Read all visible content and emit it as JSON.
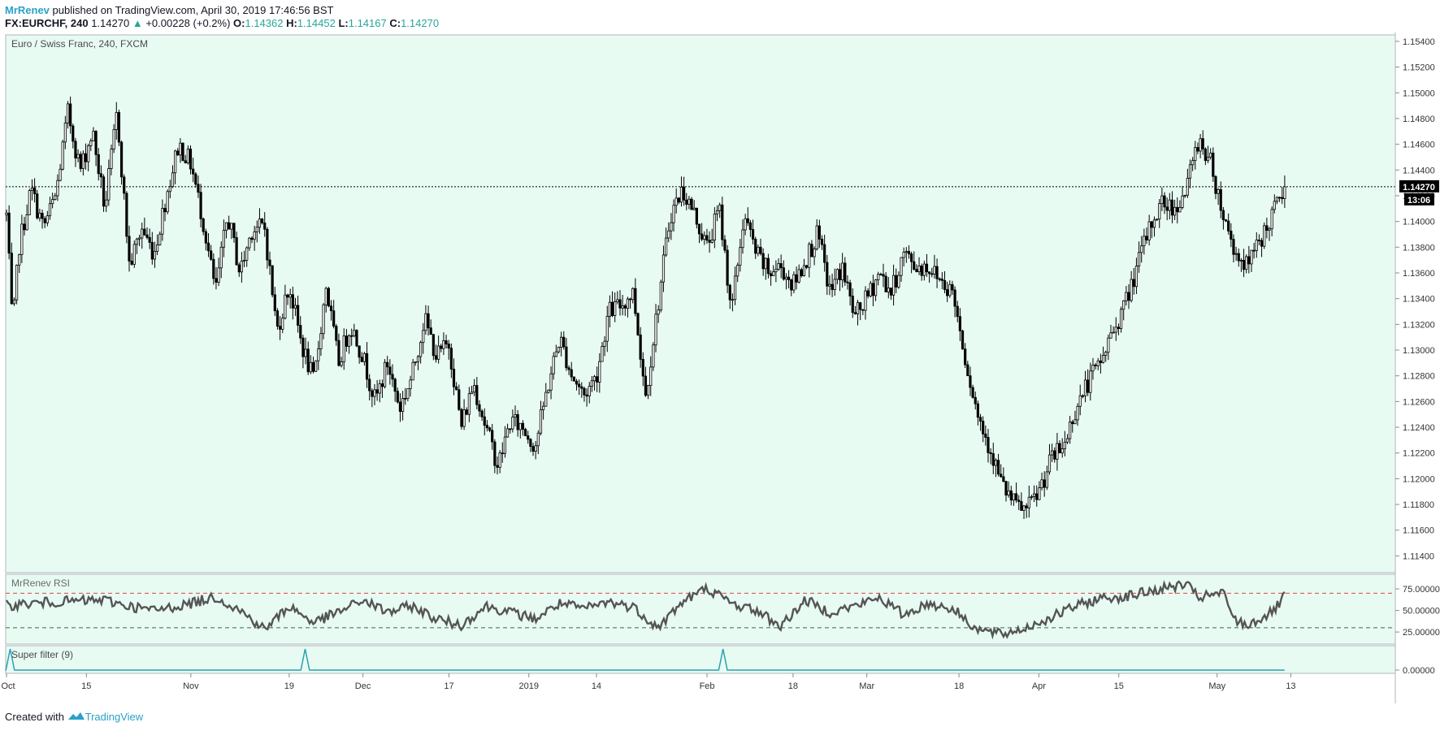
{
  "header": {
    "author": "MrRenev",
    "published_text": " published on TradingView.com, April 30, 2019 17:46:56 BST",
    "symbol": "FX:EURCHF, 240",
    "last": "1.14270",
    "change_arrow": "▲",
    "change": "+0.00228 (+0.2%)",
    "o_label": "O:",
    "o_value": "1.14362",
    "h_label": "H:",
    "h_value": "1.14452",
    "l_label": "L:",
    "l_value": "1.14167",
    "c_label": "C:",
    "c_value": "1.14270"
  },
  "main_pane": {
    "title": "Euro / Swiss Franc, 240, FXCM",
    "price_tag": "1.14270",
    "countdown_tag": "13:06"
  },
  "rsi_pane": {
    "title": "MrRenev RSI"
  },
  "filter_pane": {
    "title": "Super filter (9)"
  },
  "footer": {
    "created_with": "Created with",
    "brand": "TradingView"
  },
  "colors": {
    "pane_bg": "#e8fbf3",
    "candle": "#000000",
    "rsi_line": "#555555",
    "upper_band": "#e04444",
    "lower_band": "#3b6b3b",
    "filter_line": "#2aa1ae",
    "brand": "#2aa1c8",
    "up": "#26a69a"
  },
  "chart_data": [
    {
      "type": "candlestick",
      "title": "Euro / Swiss Franc, 240, FXCM",
      "y_ticks": [
        1.154,
        1.152,
        1.15,
        1.148,
        1.146,
        1.144,
        1.142,
        1.14,
        1.138,
        1.136,
        1.134,
        1.132,
        1.13,
        1.128,
        1.126,
        1.124,
        1.122,
        1.12,
        1.118,
        1.116,
        1.114
      ],
      "y_tick_labels": [
        "1.15400",
        "1.15200",
        "1.15000",
        "1.14800",
        "1.14600",
        "1.14400",
        "1.14200",
        "1.14000",
        "1.13800",
        "1.13600",
        "1.13400",
        "1.13200",
        "1.13000",
        "1.12800",
        "1.12600",
        "1.12400",
        "1.12200",
        "1.12000",
        "1.11800",
        "1.11600",
        "1.11400"
      ],
      "ylim": [
        1.1127,
        1.1545
      ],
      "last_price": 1.1427,
      "close_path": [
        [
          0,
          1.1405
        ],
        [
          0.5,
          1.1315
        ],
        [
          1,
          1.138
        ],
        [
          2,
          1.1425
        ],
        [
          3,
          1.1395
        ],
        [
          4,
          1.142
        ],
        [
          5,
          1.1485
        ],
        [
          6,
          1.144
        ],
        [
          7,
          1.147
        ],
        [
          8,
          1.141
        ],
        [
          9,
          1.1485
        ],
        [
          10,
          1.1365
        ],
        [
          11,
          1.1395
        ],
        [
          12,
          1.1375
        ],
        [
          13,
          1.142
        ],
        [
          14,
          1.146
        ],
        [
          15,
          1.1445
        ],
        [
          16,
          1.14
        ],
        [
          17,
          1.1345
        ],
        [
          18,
          1.1405
        ],
        [
          19,
          1.136
        ],
        [
          20,
          1.1395
        ],
        [
          21,
          1.1395
        ],
        [
          22,
          1.1315
        ],
        [
          23,
          1.135
        ],
        [
          24,
          1.1305
        ],
        [
          25,
          1.1275
        ],
        [
          26,
          1.135
        ],
        [
          27,
          1.129
        ],
        [
          28,
          1.132
        ],
        [
          29,
          1.1295
        ],
        [
          30,
          1.126
        ],
        [
          31,
          1.129
        ],
        [
          32,
          1.1255
        ],
        [
          33,
          1.128
        ],
        [
          34,
          1.1325
        ],
        [
          35,
          1.1295
        ],
        [
          36,
          1.1305
        ],
        [
          37,
          1.124
        ],
        [
          38,
          1.1275
        ],
        [
          39,
          1.124
        ],
        [
          40,
          1.121
        ],
        [
          41,
          1.1245
        ],
        [
          42,
          1.124
        ],
        [
          43,
          1.1225
        ],
        [
          44,
          1.127
        ],
        [
          45,
          1.131
        ],
        [
          46,
          1.128
        ],
        [
          47,
          1.1265
        ],
        [
          48,
          1.128
        ],
        [
          49,
          1.133
        ],
        [
          50,
          1.1335
        ],
        [
          51,
          1.1345
        ],
        [
          52,
          1.1265
        ],
        [
          53,
          1.1335
        ],
        [
          54,
          1.1405
        ],
        [
          55,
          1.1425
        ],
        [
          56,
          1.1405
        ],
        [
          57,
          1.138
        ],
        [
          58,
          1.141
        ],
        [
          59,
          1.133
        ],
        [
          60,
          1.1405
        ],
        [
          61,
          1.1375
        ],
        [
          62,
          1.136
        ],
        [
          63,
          1.1365
        ],
        [
          64,
          1.135
        ],
        [
          65,
          1.137
        ],
        [
          66,
          1.139
        ],
        [
          67,
          1.1345
        ],
        [
          68,
          1.1365
        ],
        [
          69,
          1.1325
        ],
        [
          70,
          1.134
        ],
        [
          71,
          1.136
        ],
        [
          72,
          1.1345
        ],
        [
          73,
          1.1375
        ],
        [
          74,
          1.1365
        ],
        [
          75,
          1.1365
        ],
        [
          76,
          1.1355
        ],
        [
          77,
          1.1345
        ],
        [
          78,
          1.1295
        ],
        [
          79,
          1.125
        ],
        [
          80,
          1.1225
        ],
        [
          81,
          1.1195
        ],
        [
          82,
          1.118
        ],
        [
          83,
          1.1175
        ],
        [
          84,
          1.119
        ],
        [
          85,
          1.1215
        ],
        [
          86,
          1.1225
        ],
        [
          87,
          1.1255
        ],
        [
          88,
          1.1275
        ],
        [
          89,
          1.129
        ],
        [
          90,
          1.1315
        ],
        [
          91,
          1.1335
        ],
        [
          92,
          1.1365
        ],
        [
          93,
          1.1395
        ],
        [
          94,
          1.1415
        ],
        [
          95,
          1.141
        ],
        [
          96,
          1.1425
        ],
        [
          97,
          1.1465
        ],
        [
          98,
          1.1445
        ],
        [
          99,
          1.1405
        ],
        [
          100,
          1.1375
        ],
        [
          101,
          1.1365
        ],
        [
          102,
          1.1385
        ],
        [
          103,
          1.1405
        ],
        [
          104,
          1.1427
        ]
      ]
    },
    {
      "type": "line",
      "title": "MrRenev RSI",
      "y_ticks": [
        75,
        50,
        25
      ],
      "y_tick_labels": [
        "75.00000",
        "50.00000",
        "25.00000"
      ],
      "ylim": [
        11,
        92
      ],
      "upper_band": 70,
      "lower_band": 30,
      "path": [
        [
          0,
          56
        ],
        [
          4,
          60
        ],
        [
          8,
          62
        ],
        [
          10,
          55
        ],
        [
          12,
          50
        ],
        [
          15,
          58
        ],
        [
          17,
          66
        ],
        [
          19,
          50
        ],
        [
          21,
          28
        ],
        [
          23,
          55
        ],
        [
          25,
          36
        ],
        [
          27,
          48
        ],
        [
          29,
          62
        ],
        [
          31,
          48
        ],
        [
          33,
          55
        ],
        [
          35,
          40
        ],
        [
          37,
          33
        ],
        [
          39,
          55
        ],
        [
          41,
          48
        ],
        [
          43,
          40
        ],
        [
          45,
          58
        ],
        [
          47,
          52
        ],
        [
          49,
          60
        ],
        [
          51,
          54
        ],
        [
          53,
          30
        ],
        [
          55,
          60
        ],
        [
          57,
          76
        ],
        [
          59,
          58
        ],
        [
          61,
          50
        ],
        [
          63,
          32
        ],
        [
          65,
          62
        ],
        [
          67,
          48
        ],
        [
          69,
          55
        ],
        [
          71,
          65
        ],
        [
          73,
          45
        ],
        [
          75,
          58
        ],
        [
          77,
          52
        ],
        [
          79,
          28
        ],
        [
          81,
          22
        ],
        [
          83,
          30
        ],
        [
          85,
          42
        ],
        [
          87,
          55
        ],
        [
          89,
          64
        ],
        [
          91,
          66
        ],
        [
          93,
          72
        ],
        [
          95,
          78
        ],
        [
          96,
          80
        ],
        [
          97,
          65
        ],
        [
          99,
          70
        ],
        [
          100,
          38
        ],
        [
          101,
          33
        ],
        [
          103,
          48
        ],
        [
          104,
          66
        ]
      ]
    },
    {
      "type": "line",
      "title": "Super filter (9)",
      "y_ticks": [
        0
      ],
      "y_tick_labels": [
        "0.00000"
      ],
      "ylim": [
        0,
        1
      ],
      "spikes_at": [
        0.3,
        24.3,
        58.3
      ]
    }
  ],
  "x_axis": {
    "labels": [
      {
        "t": 0,
        "label": "Oct"
      },
      {
        "t": 6.5,
        "label": "15"
      },
      {
        "t": 15,
        "label": "Nov"
      },
      {
        "t": 23,
        "label": "19"
      },
      {
        "t": 29,
        "label": "Dec"
      },
      {
        "t": 36,
        "label": "17"
      },
      {
        "t": 42.5,
        "label": "2019"
      },
      {
        "t": 48,
        "label": "14"
      },
      {
        "t": 57,
        "label": "Feb"
      },
      {
        "t": 64,
        "label": "18"
      },
      {
        "t": 70,
        "label": "Mar"
      },
      {
        "t": 77.5,
        "label": "18"
      },
      {
        "t": 84,
        "label": "Apr"
      },
      {
        "t": 90.5,
        "label": "15"
      },
      {
        "t": 98.5,
        "label": "May"
      },
      {
        "t": 104.5,
        "label": "13"
      }
    ]
  }
}
